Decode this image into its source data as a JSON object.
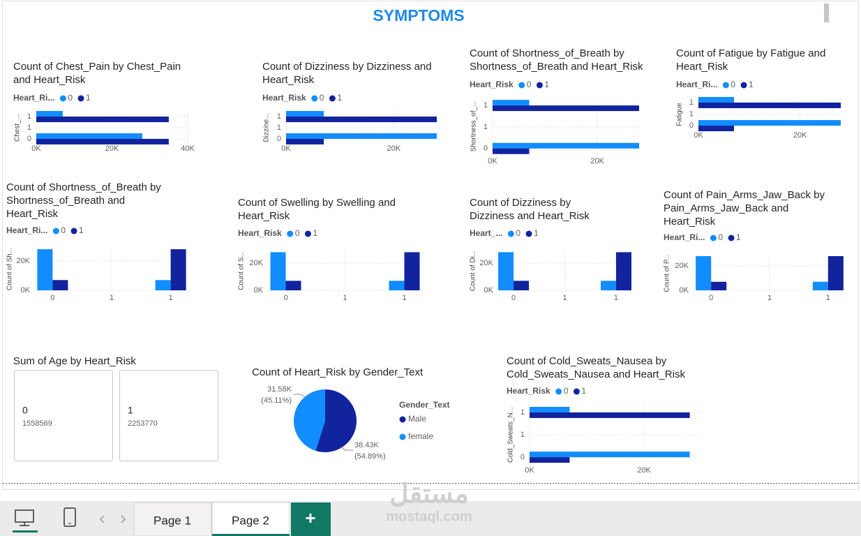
{
  "header": {
    "title": "SYMPTOMS"
  },
  "chart_data": [
    {
      "type": "bar",
      "orientation": "horizontal",
      "title": "Count of Chest_Pain by Chest_Pain and Heart_Risk",
      "legend_title": "Heart_Ri...",
      "ylabel": "Chest_...",
      "categories": [
        0,
        1
      ],
      "series": [
        {
          "name": "0",
          "color": "#118dff",
          "values": [
            28000,
            7000
          ]
        },
        {
          "name": "1",
          "color": "#12239e",
          "values": [
            35000,
            35000
          ]
        }
      ],
      "xlim": [
        0,
        40000
      ],
      "xticks": [
        {
          "value": 0,
          "label": "0K"
        },
        {
          "value": 20000,
          "label": "20K"
        },
        {
          "value": 40000,
          "label": "40K"
        }
      ],
      "ylim": [
        -0.22,
        1.22
      ],
      "yticks": [
        0,
        {
          "value": 0.5,
          "label": "1"
        },
        1
      ],
      "grid": true
    },
    {
      "type": "bar",
      "orientation": "horizontal",
      "title": "Count of Dizziness by Dizziness and Heart_Risk",
      "legend_title": "Heart_Risk",
      "ylabel": "Dizzine...",
      "categories": [
        0,
        1
      ],
      "series": [
        {
          "name": "0",
          "color": "#118dff",
          "values": [
            28000,
            7000
          ]
        },
        {
          "name": "1",
          "color": "#12239e",
          "values": [
            7000,
            28000
          ]
        }
      ],
      "xlim": [
        0,
        28000
      ],
      "xticks": [
        {
          "value": 0,
          "label": "0K"
        },
        {
          "value": 20000,
          "label": "20K"
        }
      ],
      "ylim": [
        -0.22,
        1.22
      ],
      "yticks": [
        0,
        {
          "value": 0.5,
          "label": "1"
        },
        1
      ],
      "grid": true
    },
    {
      "type": "bar",
      "orientation": "horizontal",
      "title": "Count of Shortness_of_Breath by Shortness_of_Breath and Heart_Risk",
      "legend_title": "Heart_Risk",
      "ylabel": "Shortness_of_...",
      "categories": [
        0,
        1
      ],
      "series": [
        {
          "name": "0",
          "color": "#118dff",
          "values": [
            28000,
            7000
          ]
        },
        {
          "name": "1",
          "color": "#12239e",
          "values": [
            7000,
            28000
          ]
        }
      ],
      "xlim": [
        0,
        28000
      ],
      "xticks": [
        {
          "value": 0,
          "label": "0K"
        },
        {
          "value": 20000,
          "label": "20K"
        }
      ],
      "ylim": [
        -0.15,
        1.18
      ],
      "yticks": [
        0,
        {
          "value": 0.5,
          "label": "1"
        },
        1
      ],
      "grid": true
    },
    {
      "type": "bar",
      "orientation": "horizontal",
      "title": "Count of Fatigue by Fatigue and Heart_Risk",
      "legend_title": "Heart_Ri...",
      "ylabel": "Fatigue",
      "categories": [
        0,
        1
      ],
      "series": [
        {
          "name": "0",
          "color": "#118dff",
          "values": [
            28000,
            7000
          ]
        },
        {
          "name": "1",
          "color": "#12239e",
          "values": [
            7000,
            28000
          ]
        }
      ],
      "xlim": [
        0,
        28000
      ],
      "xticks": [
        {
          "value": 0,
          "label": "0K"
        },
        {
          "value": 20000,
          "label": "20K"
        }
      ],
      "ylim": [
        -0.24,
        1.21
      ],
      "yticks": [
        0,
        {
          "value": 0.5,
          "label": "1"
        },
        1
      ],
      "grid": true
    },
    {
      "type": "bar",
      "orientation": "vertical",
      "title": "Count of Shortness_of_Breath by Shortness_of_Breath and Heart_Risk",
      "legend_title": "Heart_Ri...",
      "ylabel": "Count of Sh...",
      "categories": [
        0,
        1
      ],
      "series": [
        {
          "name": "0",
          "color": "#118dff",
          "values": [
            28000,
            7000
          ]
        },
        {
          "name": "1",
          "color": "#12239e",
          "values": [
            7000,
            28000
          ]
        }
      ],
      "xlim": [
        -0.15,
        1.15
      ],
      "xticks": [
        0,
        {
          "value": 0.5,
          "label": "1"
        },
        1
      ],
      "ylim": [
        0,
        29000
      ],
      "yticks": [
        {
          "value": 0,
          "label": "0K"
        },
        {
          "value": 20000,
          "label": "20K"
        }
      ],
      "grid": true
    },
    {
      "type": "bar",
      "orientation": "vertical",
      "title": "Count of Swelling by Swelling and Heart_Risk",
      "legend_title": "Heart_Risk",
      "ylabel": "Count of S...",
      "categories": [
        0,
        1
      ],
      "series": [
        {
          "name": "0",
          "color": "#118dff",
          "values": [
            28000,
            7000
          ]
        },
        {
          "name": "1",
          "color": "#12239e",
          "values": [
            7000,
            28000
          ]
        }
      ],
      "xlim": [
        -0.15,
        1.15
      ],
      "xticks": [
        0,
        {
          "value": 0.5,
          "label": "1"
        },
        1
      ],
      "ylim": [
        0,
        28700
      ],
      "yticks": [
        {
          "value": 0,
          "label": "0K"
        },
        {
          "value": 20000,
          "label": "20K"
        }
      ],
      "grid": true
    },
    {
      "type": "bar",
      "orientation": "vertical",
      "title": "Count of Dizziness by Dizziness and Heart_Risk",
      "legend_title": "Heart_...",
      "ylabel": "Count of Di...",
      "categories": [
        0,
        1
      ],
      "series": [
        {
          "name": "0",
          "color": "#118dff",
          "values": [
            28000,
            7000
          ]
        },
        {
          "name": "1",
          "color": "#12239e",
          "values": [
            7000,
            28000
          ]
        }
      ],
      "xlim": [
        -0.15,
        1.15
      ],
      "xticks": [
        0,
        {
          "value": 0.5,
          "label": "1"
        },
        1
      ],
      "ylim": [
        0,
        28700
      ],
      "yticks": [
        {
          "value": 0,
          "label": "0K"
        },
        {
          "value": 20000,
          "label": "20K"
        }
      ],
      "grid": true
    },
    {
      "type": "bar",
      "orientation": "vertical",
      "title": "Count of Pain_Arms_Jaw_Back by Pain_Arms_Jaw_Back and Heart_Risk",
      "legend_title": "Heart_Ri...",
      "ylabel": "Count of P...",
      "categories": [
        0,
        1
      ],
      "series": [
        {
          "name": "0",
          "color": "#118dff",
          "values": [
            28000,
            7000
          ]
        },
        {
          "name": "1",
          "color": "#12239e",
          "values": [
            7000,
            28000
          ]
        }
      ],
      "xlim": [
        -0.15,
        1.15
      ],
      "xticks": [
        0,
        {
          "value": 0.5,
          "label": "1"
        },
        1
      ],
      "ylim": [
        0,
        28000
      ],
      "yticks": [
        {
          "value": 0,
          "label": "0K"
        },
        {
          "value": 20000,
          "label": "20K"
        }
      ],
      "grid": true
    },
    {
      "type": "card",
      "title": "Sum of Age by Heart_Risk",
      "categories": [
        "0",
        "1"
      ],
      "values": [
        1558569,
        2253770
      ]
    },
    {
      "type": "pie",
      "title": "Count of Heart_Risk by Gender_Text",
      "legend_title": "Gender_Text",
      "categories": [
        "Male",
        "female"
      ],
      "values": [
        38430,
        31580
      ],
      "value_labels": [
        "38.43K",
        "31.58K"
      ],
      "percent_labels": [
        "(54.89%)",
        "(45.11%)"
      ],
      "colors": [
        "#12239e",
        "#118dff"
      ]
    },
    {
      "type": "bar",
      "orientation": "horizontal",
      "title": "Count of Cold_Sweats_Nausea by Cold_Sweats_Nausea and Heart_Risk",
      "legend_title": "Heart_Risk",
      "ylabel": "Cold_Sweats_N...",
      "categories": [
        0,
        1
      ],
      "series": [
        {
          "name": "0",
          "color": "#118dff",
          "values": [
            28000,
            7000
          ]
        },
        {
          "name": "1",
          "color": "#12239e",
          "values": [
            7000,
            28000
          ]
        }
      ],
      "xlim": [
        0,
        30000
      ],
      "xticks": [
        {
          "value": 0,
          "label": "0K"
        },
        {
          "value": 20000,
          "label": "20K"
        }
      ],
      "ylim": [
        -0.17,
        1.17
      ],
      "yticks": [
        0,
        {
          "value": 0.5,
          "label": "1"
        },
        1
      ],
      "grid": true
    }
  ],
  "tabs": {
    "pages": [
      "Page 1",
      "Page 2"
    ],
    "active": 1,
    "add": "+"
  },
  "watermark": [
    "مستقل",
    "mostaql.com"
  ]
}
